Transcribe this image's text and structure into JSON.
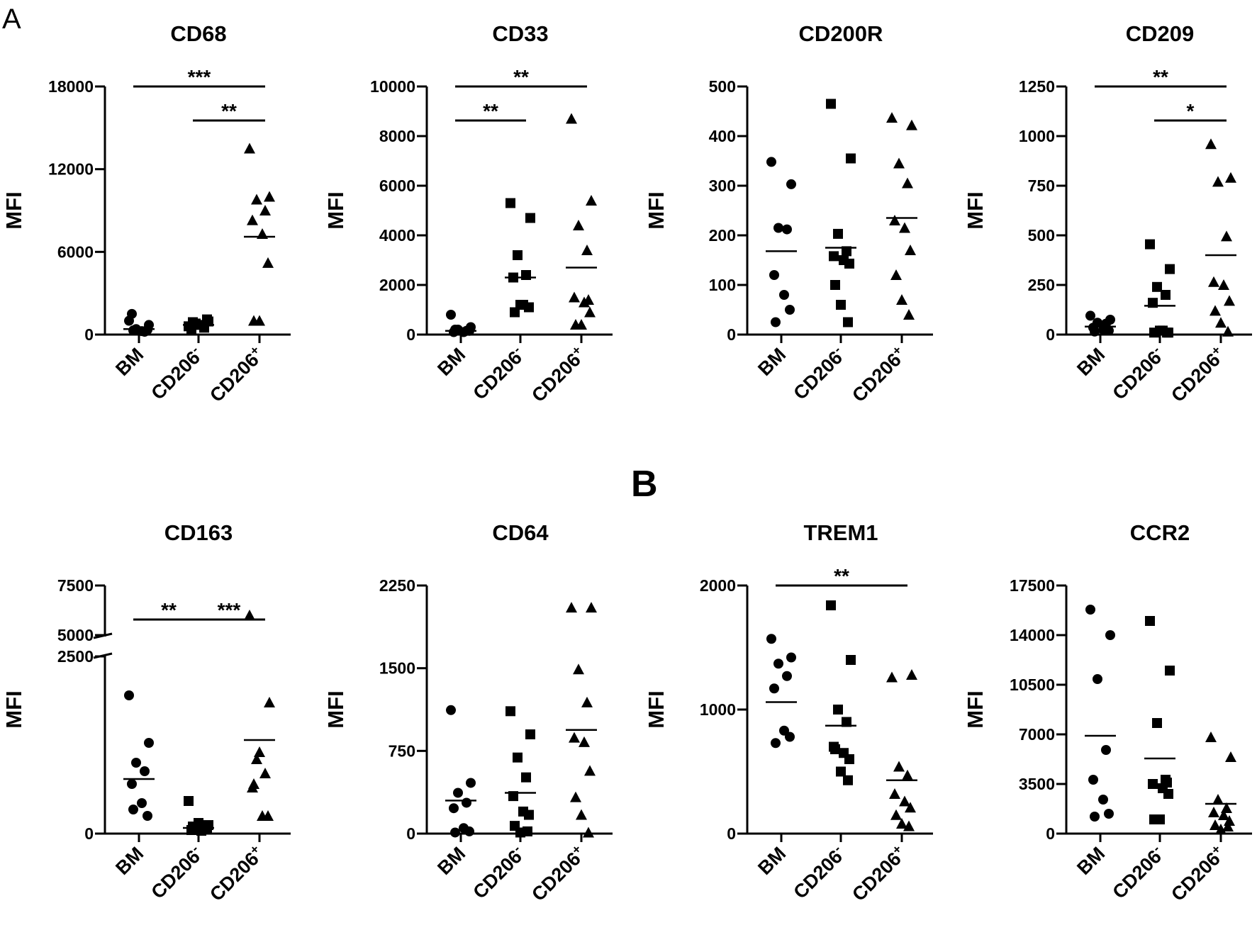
{
  "panel_labels": {
    "a": "A",
    "b": "B"
  },
  "chart_data": [
    {
      "type": "scatter",
      "title": "CD68",
      "ylabel": "MFI",
      "xlabel": "",
      "categories": [
        "BM",
        "CD206-",
        "CD206+"
      ],
      "ylim": [
        0,
        18000
      ],
      "yticks": [
        0,
        6000,
        12000,
        18000
      ],
      "ytick_labels": [
        "0",
        "6000",
        "12000",
        "18000"
      ],
      "series": [
        {
          "name": "BM",
          "marker": "circle",
          "values": [
            1000,
            700,
            400,
            200,
            1500,
            250,
            350,
            300
          ],
          "mean": 400
        },
        {
          "name": "CD206-",
          "marker": "square",
          "values": [
            600,
            950,
            800,
            500,
            350,
            700,
            1100,
            900
          ],
          "mean": 700
        },
        {
          "name": "CD206+",
          "marker": "triangle",
          "values": [
            13500,
            10000,
            9800,
            9000,
            8300,
            7300,
            5200,
            1000,
            1000
          ],
          "mean": 7100
        }
      ],
      "significance": [
        {
          "from": "BM",
          "to": "CD206+",
          "label": "***"
        },
        {
          "from": "CD206-",
          "to": "CD206+",
          "label": "**"
        }
      ]
    },
    {
      "type": "scatter",
      "title": "CD33",
      "ylabel": "MFI",
      "xlabel": "",
      "categories": [
        "BM",
        "CD206-",
        "CD206+"
      ],
      "ylim": [
        0,
        10000
      ],
      "yticks": [
        0,
        2000,
        4000,
        6000,
        8000,
        10000
      ],
      "ytick_labels": [
        "0",
        "2000",
        "4000",
        "6000",
        "8000",
        "10000"
      ],
      "series": [
        {
          "name": "BM",
          "marker": "circle",
          "values": [
            800,
            300,
            200,
            150,
            100,
            100,
            150,
            200
          ],
          "mean": 150
        },
        {
          "name": "CD206-",
          "marker": "square",
          "values": [
            5300,
            4700,
            3200,
            2400,
            2300,
            1200,
            1100,
            900,
            1200
          ],
          "mean": 2300
        },
        {
          "name": "CD206+",
          "marker": "triangle",
          "values": [
            8700,
            5400,
            4400,
            3400,
            1500,
            1300,
            900,
            400,
            400,
            1400
          ],
          "mean": 2700
        }
      ],
      "significance": [
        {
          "from": "BM",
          "to": "CD206-",
          "label": "**"
        },
        {
          "from": "BM",
          "to": "CD206+",
          "label": "**"
        }
      ]
    },
    {
      "type": "scatter",
      "title": "CD200R",
      "ylabel": "MFI",
      "xlabel": "",
      "categories": [
        "BM",
        "CD206-",
        "CD206+"
      ],
      "ylim": [
        0,
        500
      ],
      "yticks": [
        0,
        100,
        200,
        300,
        400,
        500
      ],
      "ytick_labels": [
        "0",
        "100",
        "200",
        "300",
        "400",
        "500"
      ],
      "series": [
        {
          "name": "BM",
          "marker": "circle",
          "values": [
            348,
            303,
            215,
            212,
            120,
            80,
            50,
            25
          ],
          "mean": 168
        },
        {
          "name": "CD206-",
          "marker": "square",
          "values": [
            465,
            355,
            203,
            168,
            158,
            150,
            143,
            100,
            60,
            25
          ],
          "mean": 175
        },
        {
          "name": "CD206+",
          "marker": "triangle",
          "values": [
            437,
            422,
            345,
            305,
            230,
            215,
            170,
            120,
            70,
            40
          ],
          "mean": 235
        }
      ],
      "significance": []
    },
    {
      "type": "scatter",
      "title": "CD209",
      "ylabel": "MFI",
      "xlabel": "",
      "categories": [
        "BM",
        "CD206-",
        "CD206+"
      ],
      "ylim": [
        0,
        1250
      ],
      "yticks": [
        0,
        250,
        500,
        750,
        1000,
        1250
      ],
      "ytick_labels": [
        "0",
        "250",
        "500",
        "750",
        "1000",
        "1250"
      ],
      "series": [
        {
          "name": "BM",
          "marker": "circle",
          "values": [
            95,
            75,
            60,
            55,
            35,
            25,
            20,
            15
          ],
          "mean": 40
        },
        {
          "name": "CD206-",
          "marker": "square",
          "values": [
            455,
            330,
            240,
            200,
            160,
            20,
            10,
            10,
            20,
            10
          ],
          "mean": 145
        },
        {
          "name": "CD206+",
          "marker": "triangle",
          "values": [
            960,
            790,
            770,
            495,
            265,
            250,
            170,
            120,
            60,
            15
          ],
          "mean": 400
        }
      ],
      "significance": [
        {
          "from": "BM",
          "to": "CD206+",
          "label": "**"
        },
        {
          "from": "CD206-",
          "to": "CD206+",
          "label": "*"
        }
      ]
    },
    {
      "type": "scatter",
      "title": "CD163",
      "ylabel": "MFI",
      "xlabel": "",
      "categories": [
        "BM",
        "CD206-",
        "CD206+"
      ],
      "ylim": [
        0,
        7500
      ],
      "y_break": [
        2500,
        5000
      ],
      "yticks": [
        0,
        2500,
        5000,
        7500
      ],
      "ytick_labels": [
        "0",
        "2500",
        "5000",
        "7500"
      ],
      "series": [
        {
          "name": "BM",
          "marker": "circle",
          "values": [
            1950,
            1280,
            1000,
            880,
            700,
            430,
            250,
            340
          ],
          "mean": 770
        },
        {
          "name": "CD206-",
          "marker": "square",
          "values": [
            460,
            120,
            80,
            60,
            50,
            40,
            70,
            100,
            150
          ],
          "mean": 80
        },
        {
          "name": "CD206+",
          "marker": "triangle",
          "values": [
            6000,
            1850,
            1050,
            850,
            650,
            250,
            250,
            700,
            1150
          ],
          "mean": 1320
        }
      ],
      "significance": [
        {
          "from": "BM",
          "to": "CD206-",
          "label": "**"
        },
        {
          "from": "CD206-",
          "to": "CD206+",
          "label": "***"
        }
      ]
    },
    {
      "type": "scatter",
      "title": "CD64",
      "ylabel": "MFI",
      "xlabel": "",
      "categories": [
        "BM",
        "CD206-",
        "CD206+"
      ],
      "ylim": [
        0,
        2250
      ],
      "yticks": [
        0,
        750,
        1500,
        2250
      ],
      "ytick_labels": [
        "0",
        "750",
        "1500",
        "2250"
      ],
      "series": [
        {
          "name": "BM",
          "marker": "circle",
          "values": [
            1120,
            460,
            370,
            280,
            230,
            50,
            20,
            10
          ],
          "mean": 300
        },
        {
          "name": "CD206-",
          "marker": "square",
          "values": [
            1110,
            900,
            690,
            510,
            340,
            200,
            170,
            70,
            10,
            20
          ],
          "mean": 370
        },
        {
          "name": "CD206+",
          "marker": "triangle",
          "values": [
            2050,
            2050,
            1490,
            1190,
            870,
            830,
            570,
            330,
            170,
            10
          ],
          "mean": 940
        }
      ],
      "significance": []
    },
    {
      "type": "scatter",
      "title": "TREM1",
      "ylabel": "MFI",
      "xlabel": "",
      "categories": [
        "BM",
        "CD206-",
        "CD206+"
      ],
      "ylim": [
        0,
        2000
      ],
      "yticks": [
        0,
        1000,
        2000
      ],
      "ytick_labels": [
        "0",
        "1000",
        "2000"
      ],
      "series": [
        {
          "name": "BM",
          "marker": "circle",
          "values": [
            1570,
            1420,
            1370,
            1270,
            1170,
            830,
            780,
            730
          ],
          "mean": 1060
        },
        {
          "name": "CD206-",
          "marker": "square",
          "values": [
            1840,
            1400,
            1000,
            900,
            700,
            650,
            600,
            680,
            500,
            430
          ],
          "mean": 870
        },
        {
          "name": "CD206+",
          "marker": "triangle",
          "values": [
            1260,
            1280,
            540,
            470,
            320,
            260,
            210,
            150,
            80,
            60
          ],
          "mean": 430
        }
      ],
      "significance": [
        {
          "from": "BM",
          "to": "CD206+",
          "label": "**"
        }
      ]
    },
    {
      "type": "scatter",
      "title": "CCR2",
      "ylabel": "MFI",
      "xlabel": "",
      "categories": [
        "BM",
        "CD206-",
        "CD206+"
      ],
      "ylim": [
        0,
        17500
      ],
      "yticks": [
        0,
        3500,
        7000,
        10500,
        14000,
        17500
      ],
      "ytick_labels": [
        "0",
        "3500",
        "7000",
        "10500",
        "14000",
        "17500"
      ],
      "series": [
        {
          "name": "BM",
          "marker": "circle",
          "values": [
            15800,
            14000,
            10900,
            5900,
            3800,
            2400,
            1400,
            1200
          ],
          "mean": 6900
        },
        {
          "name": "CD206-",
          "marker": "square",
          "values": [
            15000,
            11500,
            7800,
            3800,
            3500,
            3200,
            2800,
            1000,
            1000,
            3600
          ],
          "mean": 5300
        },
        {
          "name": "CD206+",
          "marker": "triangle",
          "values": [
            6800,
            5400,
            2400,
            1800,
            1500,
            1300,
            900,
            600,
            300,
            500
          ],
          "mean": 2100
        }
      ],
      "significance": []
    }
  ]
}
